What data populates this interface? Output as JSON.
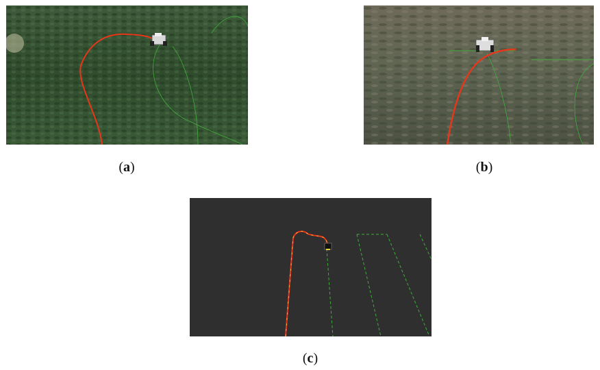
{
  "figure": {
    "panels": [
      {
        "id": "a",
        "caption_open": "(",
        "caption_letter": "a",
        "caption_close": ")",
        "scene": "satellite-terrain-green-perspective"
      },
      {
        "id": "b",
        "caption_open": "(",
        "caption_letter": "b",
        "caption_close": ")",
        "scene": "satellite-terrain-brown-perspective"
      },
      {
        "id": "c",
        "caption_open": "(",
        "caption_letter": "c",
        "caption_close": ")",
        "scene": "dark-grid-top-view"
      }
    ],
    "colors": {
      "traveled_path": "#e8361a",
      "planned_path": "#3fae3a",
      "dark_background": "#2f2f2f"
    }
  }
}
